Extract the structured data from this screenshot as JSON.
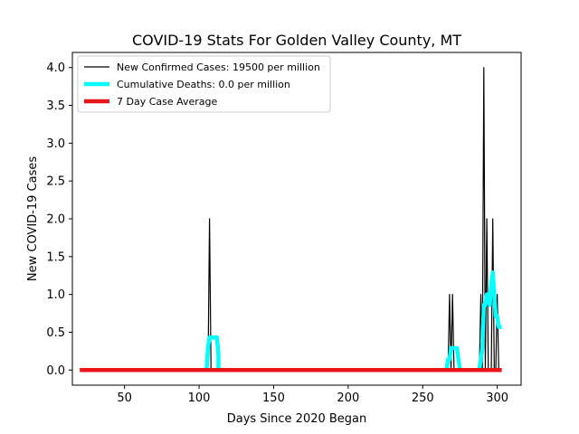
{
  "chart_data": {
    "type": "line",
    "title": "COVID-19 Stats For Golden Valley County, MT",
    "xlabel": "Days Since 2020 Began",
    "ylabel": "New COVID-19 Cases",
    "xlim": [
      15,
      316
    ],
    "ylim": [
      -0.2,
      4.2
    ],
    "xticks": [
      50,
      100,
      150,
      200,
      250,
      300
    ],
    "yticks": [
      0.0,
      0.5,
      1.0,
      1.5,
      2.0,
      2.5,
      3.0,
      3.5,
      4.0
    ],
    "xtick_labels": [
      "50",
      "100",
      "150",
      "200",
      "250",
      "300"
    ],
    "ytick_labels": [
      "0.0",
      "0.5",
      "1.0",
      "1.5",
      "2.0",
      "2.5",
      "3.0",
      "3.5",
      "4.0"
    ],
    "grid": false,
    "legend_position": "top-left",
    "series": [
      {
        "name": "New Confirmed Cases: 19500 per million",
        "color": "#000000",
        "points": [
          [
            20,
            0
          ],
          [
            106,
            0
          ],
          [
            107,
            2
          ],
          [
            108,
            0
          ],
          [
            267,
            0
          ],
          [
            268,
            1
          ],
          [
            269,
            0
          ],
          [
            270,
            1
          ],
          [
            271,
            0
          ],
          [
            288,
            0
          ],
          [
            289,
            1
          ],
          [
            290,
            0
          ],
          [
            291,
            4
          ],
          [
            292,
            0
          ],
          [
            293,
            2
          ],
          [
            294,
            0
          ],
          [
            296,
            0
          ],
          [
            297,
            2
          ],
          [
            298,
            0
          ],
          [
            299,
            0
          ],
          [
            300,
            1
          ],
          [
            301,
            0
          ],
          [
            303,
            0
          ]
        ]
      },
      {
        "name": "Cumulative Deaths: 0.0 per million",
        "color": "#00ffff",
        "points": [
          [
            105,
            0
          ],
          [
            106,
            0.3
          ],
          [
            107,
            0.43
          ],
          [
            108,
            0.43
          ],
          [
            109,
            0.43
          ],
          [
            110,
            0.43
          ],
          [
            111,
            0.43
          ],
          [
            112,
            0.43
          ],
          [
            113,
            0.2
          ],
          [
            113,
            0
          ],
          [
            266,
            0
          ],
          [
            267,
            0.14
          ],
          [
            268,
            0.14
          ],
          [
            269,
            0.29
          ],
          [
            270,
            0.29
          ],
          [
            271,
            0.29
          ],
          [
            272,
            0.29
          ],
          [
            273,
            0.29
          ],
          [
            274,
            0.14
          ],
          [
            275,
            0
          ],
          [
            288,
            0
          ],
          [
            289,
            0.14
          ],
          [
            290,
            0.29
          ],
          [
            291,
            0.86
          ],
          [
            292,
            0.86
          ],
          [
            293,
            1.0
          ],
          [
            294,
            1.0
          ],
          [
            295,
            0.86
          ],
          [
            296,
            1.14
          ],
          [
            297,
            1.29
          ],
          [
            298,
            1.0
          ],
          [
            299,
            0.71
          ],
          [
            300,
            0.71
          ],
          [
            301,
            0.57
          ],
          [
            302,
            0.57
          ],
          [
            303,
            0.57
          ]
        ]
      },
      {
        "name": "7 Day Case Average",
        "color": "#e8141a",
        "points": [
          [
            20,
            0
          ],
          [
            303,
            0
          ]
        ]
      }
    ]
  }
}
